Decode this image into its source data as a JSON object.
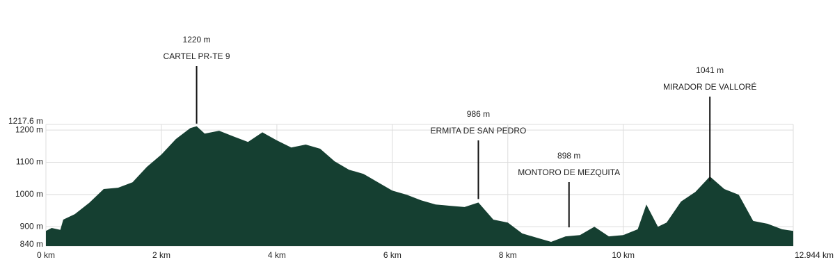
{
  "chart_data": {
    "type": "area",
    "color": "#153f31",
    "grid": true,
    "xlim": [
      0,
      12.944
    ],
    "ylim": [
      840,
      1217.6
    ],
    "xticks": [
      {
        "value": 0,
        "label": "0 km"
      },
      {
        "value": 2,
        "label": "2 km"
      },
      {
        "value": 4,
        "label": "4 km"
      },
      {
        "value": 6,
        "label": "6 km"
      },
      {
        "value": 8,
        "label": "8 km"
      },
      {
        "value": 10,
        "label": "10 km"
      },
      {
        "value": 12.944,
        "label": "12.944 km"
      }
    ],
    "yticks": [
      {
        "value": 840,
        "label": "840 m"
      },
      {
        "value": 900,
        "label": "900 m"
      },
      {
        "value": 1000,
        "label": "1000 m"
      },
      {
        "value": 1100,
        "label": "1100 m"
      },
      {
        "value": 1200,
        "label": "1200 m"
      },
      {
        "value": 1217.6,
        "label": "1217.6 m"
      }
    ],
    "x": [
      0,
      0.1,
      0.25,
      0.3,
      0.5,
      0.75,
      1.0,
      1.25,
      1.5,
      1.75,
      2.0,
      2.25,
      2.5,
      2.61,
      2.75,
      3.0,
      3.25,
      3.5,
      3.75,
      4.0,
      4.25,
      4.5,
      4.75,
      5.0,
      5.25,
      5.5,
      5.75,
      6.0,
      6.25,
      6.5,
      6.75,
      7.0,
      7.25,
      7.49,
      7.75,
      8.0,
      8.25,
      8.5,
      8.75,
      9.0,
      9.25,
      9.5,
      9.75,
      10.0,
      10.25,
      10.4,
      10.6,
      10.75,
      11.0,
      11.25,
      11.5,
      11.75,
      12.0,
      12.25,
      12.5,
      12.75,
      12.944
    ],
    "values": [
      887,
      896,
      890,
      922,
      939,
      974,
      1017,
      1021,
      1038,
      1086,
      1124,
      1172,
      1206,
      1212,
      1189,
      1198,
      1180,
      1163,
      1193,
      1168,
      1146,
      1155,
      1142,
      1103,
      1077,
      1064,
      1038,
      1012,
      999,
      982,
      969,
      965,
      961,
      975,
      922,
      913,
      879,
      866,
      853,
      870,
      874,
      900,
      870,
      874,
      892,
      969,
      900,
      913,
      978,
      1008,
      1056,
      1017,
      999,
      918,
      909,
      892,
      887
    ],
    "annotations": [
      {
        "x": 2.61,
        "value": 1220,
        "value_label": "1220 m",
        "text": "CARTEL PR-TE 9"
      },
      {
        "x": 7.49,
        "value": 986,
        "value_label": "986 m",
        "text": "ERMITA DE SAN PEDRO"
      },
      {
        "x": 9.06,
        "value": 898,
        "value_label": "898 m",
        "text": "MONTORO DE MEZQUITA"
      },
      {
        "x": 11.5,
        "value": 1041,
        "value_label": "1041 m",
        "text": "MIRADOR DE VALLORÉ"
      }
    ]
  }
}
